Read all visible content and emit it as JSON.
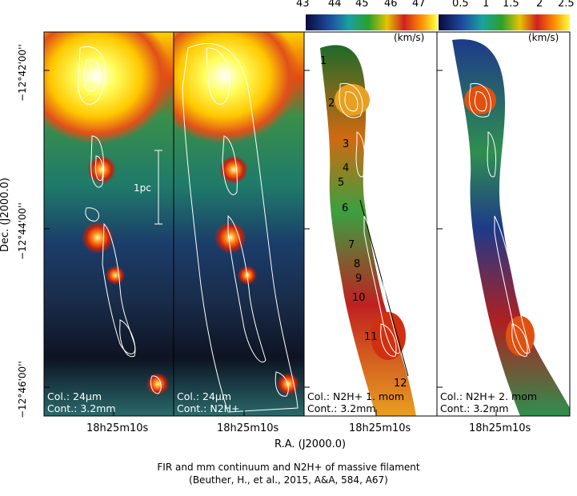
{
  "colorbars": {
    "vlsr": {
      "ticks": [
        "43",
        "44",
        "45",
        "46",
        "47"
      ],
      "unit": "(km/s)"
    },
    "width": {
      "ticks": [
        "0.5",
        "1",
        "1.5",
        "2",
        "2.5"
      ],
      "unit": "(km/s)"
    }
  },
  "dec_ticks": [
    "−12°42'00''",
    "−12°44'00''",
    "−12°46'00''"
  ],
  "ylabel": "Dec. (J2000.0)",
  "xlabel": "R.A. (J2000.0)",
  "ra_tick": "18h25m10s",
  "scale_bar_label": "1pc",
  "panels": [
    {
      "col_label": "Col.: 24μm",
      "cont_label": "Cont.: 3.2mm"
    },
    {
      "col_label": "Col.: 24μm",
      "cont_label": "Cont.: N2H+"
    },
    {
      "col_label": "Col.: N2H+ 1. mom",
      "cont_label": "Cont.: 3.2mm"
    },
    {
      "col_label": "Col.: N2H+ 2. mom",
      "cont_label": "Cont.: 3.2mm"
    }
  ],
  "core_numbers": [
    "1",
    "2",
    "3",
    "4",
    "5",
    "6",
    "7",
    "8",
    "9",
    "10",
    "11",
    "12"
  ],
  "caption": {
    "line1": "FIR and mm continuum and N2H+ of massive filament",
    "line2": "(Beuther, H., et al., 2015, A&A, 584, A67)"
  },
  "colors": {
    "frame": "#000000",
    "contour": "#ffffff",
    "ir_low": "#1a1a3a",
    "ir_mid": "#2f8f4f",
    "ir_high": "#ffe000"
  }
}
